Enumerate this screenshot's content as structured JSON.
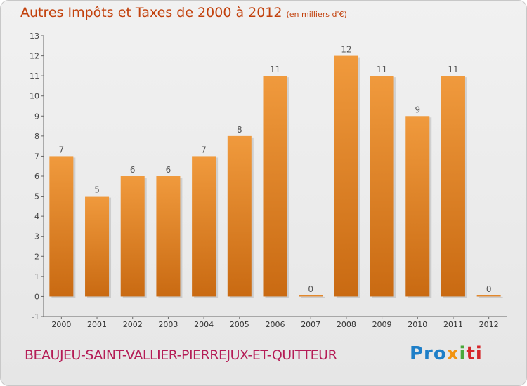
{
  "header": {
    "title": "Autres Impôts et Taxes de 2000 à 2012",
    "unit": "(en milliers d'€)"
  },
  "commune": "BEAUJEU-SAINT-VALLIER-PIERREJUX-ET-QUITTEUR",
  "logo": {
    "p1": "Pro",
    "p2": "x",
    "p3": "i",
    "p4": "ti"
  },
  "colors": {
    "bar": "#f09a3d",
    "bar_dark": "#c96a12",
    "title": "#c2410c",
    "commune": "#b51c56"
  },
  "chart_data": {
    "type": "bar",
    "title": "Autres Impôts et Taxes de 2000 à 2012",
    "categories": [
      "2000",
      "2001",
      "2002",
      "2003",
      "2004",
      "2005",
      "2006",
      "2007",
      "2008",
      "2009",
      "2010",
      "2011",
      "2012"
    ],
    "values": [
      7,
      5,
      6,
      6,
      7,
      8,
      11,
      0,
      12,
      11,
      9,
      11,
      0
    ],
    "data_labels": [
      "7",
      "5",
      "6",
      "6",
      "7",
      "8",
      "11",
      "0",
      "12",
      "11",
      "9",
      "11",
      "0"
    ],
    "y_ticks": [
      "-1",
      "0",
      "1",
      "2",
      "3",
      "4",
      "5",
      "6",
      "7",
      "8",
      "9",
      "10",
      "11",
      "12",
      "13"
    ],
    "ylim": [
      -1,
      13
    ],
    "grid": false,
    "legend": "none"
  }
}
